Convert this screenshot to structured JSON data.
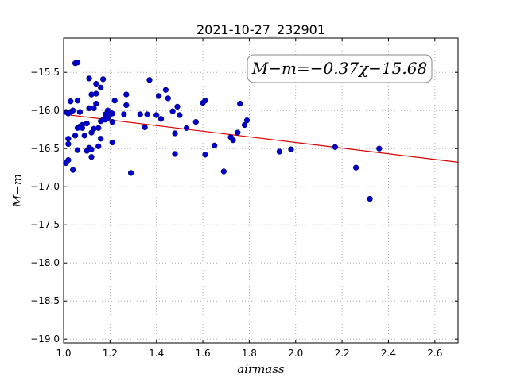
{
  "chart_data": {
    "type": "scatter",
    "title": "2021-10-27_232901",
    "xlabel": "airmass",
    "ylabel": "M−m",
    "xlim": [
      1.0,
      2.7
    ],
    "ylim": [
      -19.05,
      -15.05
    ],
    "y_inverted": false,
    "grid": true,
    "x_ticks": [
      1.0,
      1.2,
      1.4,
      1.6,
      1.8,
      2.0,
      2.2,
      2.4,
      2.6
    ],
    "x_tick_labels": [
      "1.0",
      "1.2",
      "1.4",
      "1.6",
      "1.8",
      "2.0",
      "2.2",
      "2.4",
      "2.6"
    ],
    "y_ticks": [
      -15.5,
      -16.0,
      -16.5,
      -17.0,
      -17.5,
      -18.0,
      -18.5,
      -19.0
    ],
    "y_tick_labels": [
      "−15.5",
      "−16.0",
      "−16.5",
      "−17.0",
      "−17.5",
      "−18.0",
      "−18.5",
      "−19.0"
    ],
    "annotation": "M−m=−0.37χ−15.68",
    "fit_line": {
      "slope": -0.37,
      "intercept": -15.68,
      "color": "#dd0000"
    },
    "point_color": "#0000cc",
    "points": {
      "x": [
        1.01,
        1.02,
        1.03,
        1.04,
        1.02,
        1.03,
        1.05,
        1.06,
        1.02,
        1.01,
        1.02,
        1.04,
        1.06,
        1.07,
        1.08,
        1.07,
        1.06,
        1.08,
        1.1,
        1.09,
        1.11,
        1.12,
        1.13,
        1.14,
        1.13,
        1.12,
        1.11,
        1.14,
        1.15,
        1.16,
        1.17,
        1.17,
        1.18,
        1.19,
        1.2,
        1.19,
        1.2,
        1.21,
        1.21,
        1.2,
        1.22,
        1.16,
        1.15,
        1.14,
        1.12,
        1.12,
        1.1,
        1.11,
        1.16,
        1.18,
        1.21,
        1.05,
        1.06,
        1.27,
        1.27,
        1.26,
        1.29,
        1.33,
        1.35,
        1.36,
        1.37,
        1.4,
        1.41,
        1.42,
        1.44,
        1.45,
        1.47,
        1.48,
        1.49,
        1.48,
        1.5,
        1.53,
        1.57,
        1.6,
        1.61,
        1.61,
        1.65,
        1.69,
        1.72,
        1.73,
        1.75,
        1.76,
        1.78,
        1.79,
        1.93,
        1.98,
        2.17,
        2.26,
        2.32,
        2.36
      ],
      "y": [
        -16.02,
        -16.04,
        -16.02,
        -16.0,
        -16.37,
        -15.88,
        -15.38,
        -15.37,
        -16.65,
        -16.69,
        -16.44,
        -16.78,
        -15.87,
        -16.02,
        -16.19,
        -16.21,
        -16.23,
        -16.23,
        -16.17,
        -16.33,
        -15.58,
        -15.79,
        -15.97,
        -15.78,
        -16.24,
        -16.29,
        -16.49,
        -15.91,
        -16.23,
        -15.7,
        -16.12,
        -15.59,
        -16.05,
        -16.1,
        -16.02,
        -16.0,
        -16.05,
        -16.15,
        -16.42,
        -16.02,
        -15.87,
        -16.37,
        -16.47,
        -15.65,
        -16.51,
        -16.61,
        -16.53,
        -15.97,
        -16.14,
        -16.12,
        -16.04,
        -16.33,
        -16.52,
        -15.79,
        -15.93,
        -16.05,
        -16.82,
        -16.05,
        -16.22,
        -16.05,
        -15.6,
        -16.06,
        -15.81,
        -16.11,
        -15.73,
        -15.84,
        -16.01,
        -16.3,
        -15.95,
        -16.57,
        -16.06,
        -16.23,
        -16.15,
        -15.9,
        -15.87,
        -16.58,
        -16.46,
        -16.8,
        -16.35,
        -16.39,
        -16.29,
        -15.91,
        -16.19,
        -16.13,
        -16.54,
        -16.51,
        -16.48,
        -16.75,
        -17.16,
        -16.5
      ]
    }
  }
}
